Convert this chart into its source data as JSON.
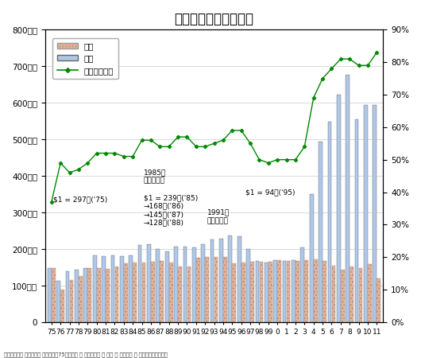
{
  "title": "トヨタ販売台数の推移",
  "years": [
    "75",
    "76",
    "77",
    "78",
    "79",
    "80",
    "81",
    "82",
    "83",
    "84",
    "85",
    "86",
    "87",
    "88",
    "89",
    "90",
    "91",
    "92",
    "93",
    "94",
    "95",
    "96",
    "97",
    "98",
    "99",
    "0",
    "1",
    "2",
    "3",
    "4",
    "5",
    "6",
    "7",
    "8",
    "9",
    "10",
    "11"
  ],
  "domestic": [
    148,
    88,
    114,
    127,
    147,
    148,
    145,
    153,
    160,
    162,
    163,
    166,
    168,
    163,
    153,
    153,
    175,
    178,
    178,
    178,
    160,
    162,
    165,
    165,
    165,
    170,
    168,
    167,
    170,
    172,
    168,
    155,
    143,
    153,
    148,
    158,
    120
  ],
  "overseas": [
    148,
    113,
    138,
    143,
    147,
    183,
    181,
    183,
    181,
    182,
    210,
    213,
    201,
    193,
    207,
    206,
    205,
    213,
    225,
    228,
    237,
    235,
    200,
    168,
    162,
    170,
    167,
    170,
    204,
    350,
    493,
    548,
    623,
    676,
    555,
    595,
    595
  ],
  "ratio": [
    37,
    49,
    46,
    47,
    49,
    52,
    52,
    52,
    51,
    51,
    56,
    56,
    54,
    54,
    57,
    57,
    54,
    54,
    55,
    56,
    59,
    59,
    55,
    50,
    49,
    50,
    50,
    50,
    54,
    69,
    75,
    78,
    81,
    81,
    79,
    79,
    83
  ],
  "yticks_left": [
    0,
    100,
    200,
    300,
    400,
    500,
    600,
    700,
    800
  ],
  "yticks_right": [
    0,
    10,
    20,
    30,
    40,
    50,
    60,
    70,
    80,
    90
  ],
  "ylim_left": [
    0,
    800
  ],
  "ylim_right": [
    0,
    90
  ],
  "domestic_color": "#f0b090",
  "overseas_color": "#aec8e8",
  "ratio_color": "#008800",
  "legend_domestic": "国内",
  "legend_overseas": "海外",
  "legend_ratio": "海外販売比率",
  "ann1": "$1 = 297円('75)",
  "ann2a": "1985年\nプラザ合意",
  "ann2b": "$1 = 239円('85)\n→168円('86)\n→145円('87)\n→128円('88)",
  "ann3": "1991年\nバブル崩壊",
  "ann4": "$1 = 94円('95)",
  "footer": "トヨタ自動車 ７５年史＞ 資料で見ゃ75年の歩み ＞ 自動車事業 ＞ 営業 ＞ 販売台数 ＞ 海外販売台数の推移"
}
